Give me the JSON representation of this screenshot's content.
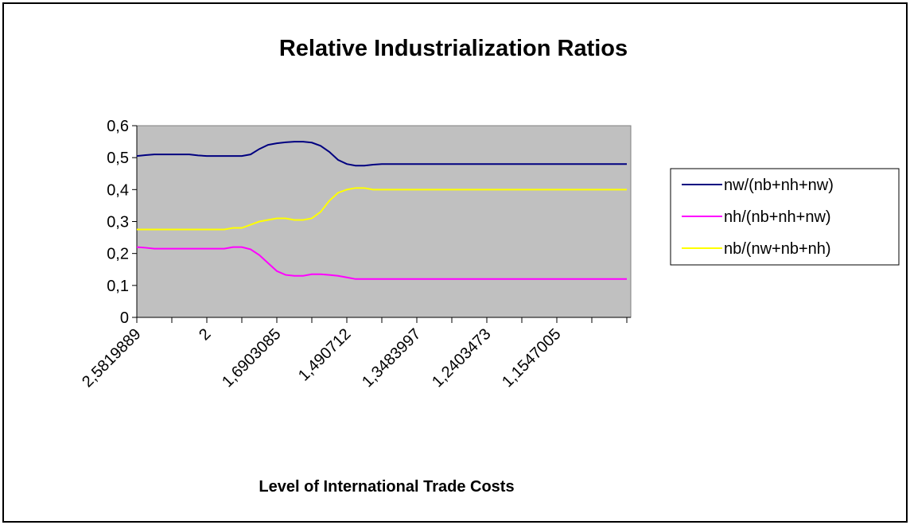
{
  "chart_data": {
    "type": "line",
    "title": "Relative Industrialization Ratios",
    "x_label": "Level of International Trade Costs",
    "categories": [
      "2,5819889",
      null,
      null,
      null,
      null,
      null,
      null,
      null,
      "2",
      null,
      null,
      null,
      null,
      null,
      null,
      null,
      "1,6903085",
      null,
      null,
      null,
      null,
      null,
      null,
      null,
      "1,490712",
      null,
      null,
      null,
      null,
      null,
      null,
      null,
      "1,3483997",
      null,
      null,
      null,
      null,
      null,
      null,
      null,
      "1,2403473",
      null,
      null,
      null,
      null,
      null,
      null,
      null,
      "1,1547005",
      null,
      null,
      null,
      null,
      null,
      null,
      null,
      null
    ],
    "series": [
      {
        "name": "nw/(nb+nh+nw)",
        "color": "#000080",
        "values": [
          0.505,
          0.508,
          0.51,
          0.51,
          0.51,
          0.51,
          0.51,
          0.507,
          0.505,
          0.505,
          0.505,
          0.505,
          0.505,
          0.51,
          0.527,
          0.54,
          0.545,
          0.548,
          0.55,
          0.55,
          0.547,
          0.537,
          0.518,
          0.493,
          0.48,
          0.475,
          0.475,
          0.478,
          0.48,
          0.48,
          0.48,
          0.48,
          0.48,
          0.48,
          0.48,
          0.48,
          0.48,
          0.48,
          0.48,
          0.48,
          0.48,
          0.48,
          0.48,
          0.48,
          0.48,
          0.48,
          0.48,
          0.48,
          0.48,
          0.48,
          0.48,
          0.48,
          0.48,
          0.48,
          0.48,
          0.48,
          0.48
        ]
      },
      {
        "name": "nh/(nb+nh+nw)",
        "color": "#ff00ff",
        "values": [
          0.22,
          0.218,
          0.215,
          0.215,
          0.215,
          0.215,
          0.215,
          0.215,
          0.215,
          0.215,
          0.215,
          0.22,
          0.22,
          0.213,
          0.195,
          0.17,
          0.145,
          0.133,
          0.13,
          0.13,
          0.135,
          0.135,
          0.133,
          0.13,
          0.125,
          0.12,
          0.12,
          0.12,
          0.12,
          0.12,
          0.12,
          0.12,
          0.12,
          0.12,
          0.12,
          0.12,
          0.12,
          0.12,
          0.12,
          0.12,
          0.12,
          0.12,
          0.12,
          0.12,
          0.12,
          0.12,
          0.12,
          0.12,
          0.12,
          0.12,
          0.12,
          0.12,
          0.12,
          0.12,
          0.12,
          0.12,
          0.12
        ]
      },
      {
        "name": "nb/(nw+nb+nh)",
        "color": "#ffff00",
        "values": [
          0.275,
          0.275,
          0.275,
          0.275,
          0.275,
          0.275,
          0.275,
          0.275,
          0.275,
          0.275,
          0.275,
          0.28,
          0.28,
          0.29,
          0.3,
          0.305,
          0.31,
          0.31,
          0.305,
          0.305,
          0.31,
          0.33,
          0.365,
          0.39,
          0.4,
          0.405,
          0.405,
          0.4,
          0.4,
          0.4,
          0.4,
          0.4,
          0.4,
          0.4,
          0.4,
          0.4,
          0.4,
          0.4,
          0.4,
          0.4,
          0.4,
          0.4,
          0.4,
          0.4,
          0.4,
          0.4,
          0.4,
          0.4,
          0.4,
          0.4,
          0.4,
          0.4,
          0.4,
          0.4,
          0.4,
          0.4,
          0.4
        ]
      }
    ],
    "ylim": [
      0,
      0.6
    ],
    "yticks": [
      0,
      {
        "value": 0.1,
        "label": "0,1"
      },
      {
        "value": 0.2,
        "label": "0,2"
      },
      {
        "value": 0.3,
        "label": "0,3"
      },
      {
        "value": 0.4,
        "label": "0,4"
      },
      {
        "value": 0.5,
        "label": "0,5"
      },
      {
        "value": 0.6,
        "label": "0,6"
      }
    ],
    "legend": "right"
  }
}
